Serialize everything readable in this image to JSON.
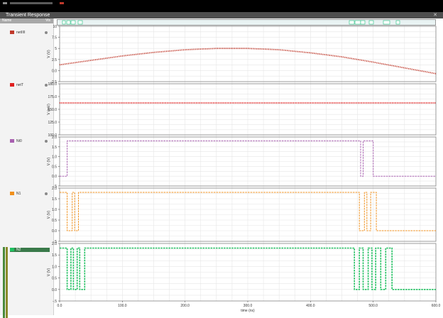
{
  "window": {
    "title": "Transient Response",
    "legend_header": "Name",
    "legend_close": "Vis"
  },
  "colors": {
    "background": "#ffffff",
    "grid": "#e4e4e4",
    "axis": "#555555"
  },
  "chart_data": {
    "type": "line",
    "x_axis": {
      "label": "time (ns)",
      "range": [
        0,
        600
      ],
      "ticks": [
        "0.0",
        "100.0",
        "200.0",
        "300.0",
        "400.0",
        "500.0",
        "600.0"
      ]
    },
    "panels": [
      {
        "name": "netIIII",
        "color": "#c0392b",
        "marker": "dot",
        "ylabel": "V (V)",
        "ylim": [
          -2.5,
          10
        ],
        "yticks": [
          "10",
          "7.5",
          "5",
          "2.5",
          "0.0",
          "-2.5"
        ],
        "x": [
          0,
          50,
          100,
          150,
          200,
          250,
          300,
          350,
          400,
          450,
          500,
          550,
          600
        ],
        "y": [
          1.3,
          2.3,
          3.3,
          4.1,
          4.7,
          5.0,
          5.0,
          4.7,
          4.0,
          3.1,
          1.9,
          0.6,
          -0.7
        ]
      },
      {
        "name": "netT",
        "color": "#e02020",
        "marker": "dot",
        "ylabel": "V (mV)",
        "ylim": [
          100,
          180
        ],
        "yticks": [
          "180.0",
          "175.0",
          "150.0",
          "125.0",
          "100.0"
        ],
        "x": [
          0,
          600
        ],
        "y": [
          150,
          150
        ]
      },
      {
        "name": "Nt0",
        "color": "#a860b0",
        "marker": "dash",
        "ylabel": "V (V)",
        "ylim": [
          -0.5,
          2.0
        ],
        "yticks": [
          "2.0",
          "1.5",
          "1.0",
          "0.5",
          "0.0",
          "-.5"
        ],
        "x": [
          0,
          12,
          12,
          18,
          18,
          480,
          480,
          484,
          484,
          500,
          500,
          600
        ],
        "y": [
          0,
          0,
          1.8,
          1.8,
          1.8,
          1.8,
          0,
          0,
          1.8,
          1.8,
          0,
          0
        ]
      },
      {
        "name": "N1",
        "color": "#f0901c",
        "marker": "dash",
        "ylabel": "V (V)",
        "ylim": [
          -0.5,
          2.0
        ],
        "yticks": [
          "2.0",
          "1.5",
          "1.0",
          "0.5",
          "0.0",
          "-.5"
        ],
        "x": [
          0,
          12,
          12,
          20,
          20,
          24,
          24,
          30,
          30,
          478,
          478,
          486,
          486,
          490,
          490,
          496,
          496,
          505,
          505,
          512,
          512,
          600
        ],
        "y": [
          1.8,
          1.8,
          0,
          0,
          1.8,
          1.8,
          0,
          0,
          1.8,
          1.8,
          0,
          0,
          1.8,
          1.8,
          0,
          0,
          1.8,
          1.8,
          0,
          0,
          0,
          0
        ]
      },
      {
        "name": "N2",
        "color": "#20c060",
        "marker": "dash",
        "ylabel": "V (V)",
        "ylim": [
          -0.5,
          2.0
        ],
        "yticks": [
          "2.0",
          "1.5",
          "1.0",
          "0.5",
          "0.0",
          "-.5"
        ],
        "x": [
          0,
          12,
          12,
          18,
          18,
          22,
          22,
          28,
          28,
          32,
          32,
          40,
          40,
          470,
          470,
          478,
          478,
          484,
          484,
          492,
          492,
          498,
          498,
          504,
          504,
          512,
          512,
          520,
          520,
          530,
          530,
          540,
          540,
          600
        ],
        "y": [
          1.8,
          1.8,
          0,
          0,
          1.8,
          1.8,
          0,
          0,
          1.8,
          1.8,
          0,
          0,
          1.8,
          1.8,
          0,
          0,
          1.8,
          1.8,
          0,
          0,
          1.8,
          1.8,
          0,
          0,
          1.8,
          1.8,
          0,
          0,
          1.8,
          1.8,
          0,
          0,
          0,
          0
        ]
      }
    ]
  }
}
